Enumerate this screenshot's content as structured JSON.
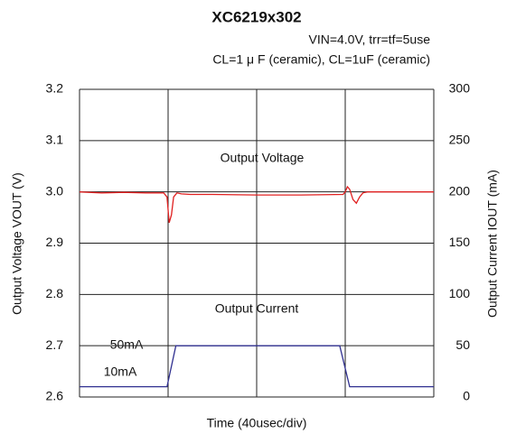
{
  "chart_data": {
    "type": "line",
    "title": "XC6219x302",
    "subtitle": [
      "VIN=4.0V, trr=tf=5use",
      "CL=1 μ F (ceramic), CL=1uF (ceramic)"
    ],
    "xlabel": "Time (40usec/div)",
    "ylabel": "Output Voltage VOUT (V)",
    "y2label": "Output Current IOUT (mA)",
    "xlim": [
      0,
      160
    ],
    "xticks": [
      0,
      40,
      80,
      120,
      160
    ],
    "ylim": [
      2.6,
      3.2
    ],
    "yticks": [
      2.6,
      2.7,
      2.8,
      2.9,
      {
        "value": 3,
        "label": "3.0"
      },
      3.1,
      3.2
    ],
    "y2lim": [
      0,
      300
    ],
    "y2ticks": [
      0,
      50,
      100,
      150,
      200,
      250,
      300
    ],
    "grid": true,
    "annotations": [
      "Output Voltage",
      "Output Current",
      "50mA",
      "10mA"
    ],
    "series": [
      {
        "name": "Output Voltage",
        "color": "#e02020",
        "x": [
          0,
          10,
          20,
          30,
          38,
          39.5,
          40.5,
          41.5,
          42.5,
          44,
          46,
          50,
          60,
          80,
          100,
          119,
          120,
          121,
          122,
          123.5,
          125,
          126.5,
          128,
          130,
          140,
          160
        ],
        "values": [
          3.0,
          2.998,
          2.999,
          2.998,
          2.998,
          2.99,
          2.94,
          2.955,
          2.99,
          2.998,
          2.996,
          2.995,
          2.995,
          2.994,
          2.994,
          2.995,
          3.0,
          3.01,
          3.005,
          2.985,
          2.978,
          2.99,
          2.998,
          3.0,
          3.0,
          3.0
        ]
      },
      {
        "name": "Output Current",
        "color": "#303090",
        "axis": "y2",
        "x": [
          0,
          39.5,
          43.5,
          117.5,
          122,
          160
        ],
        "values": [
          10,
          10,
          50,
          50,
          10,
          10
        ]
      }
    ]
  }
}
